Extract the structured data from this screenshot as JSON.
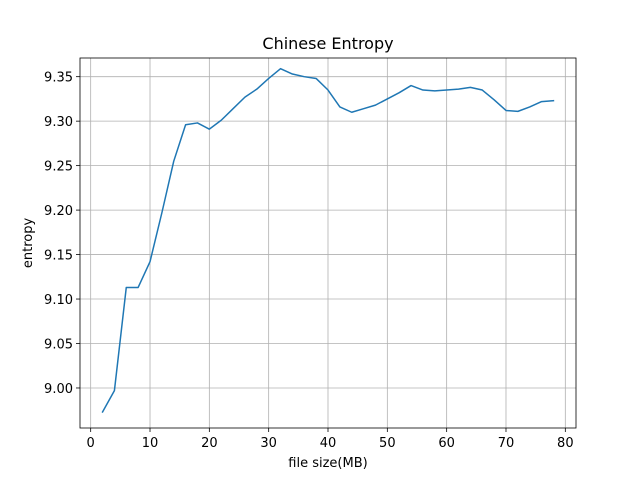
{
  "chart_data": {
    "type": "line",
    "title": "Chinese Entropy",
    "xlabel": "file size(MB)",
    "ylabel": "entropy",
    "xlim": [
      -1.8,
      81.8
    ],
    "ylim": [
      8.955,
      9.371
    ],
    "xticks": [
      0,
      10,
      20,
      30,
      40,
      50,
      60,
      70,
      80
    ],
    "yticks": [
      9.0,
      9.05,
      9.1,
      9.15,
      9.2,
      9.25,
      9.3,
      9.35
    ],
    "xtick_labels": [
      "0",
      "10",
      "20",
      "30",
      "40",
      "50",
      "60",
      "70",
      "80"
    ],
    "ytick_labels": [
      "9.00",
      "9.05",
      "9.10",
      "9.15",
      "9.20",
      "9.25",
      "9.30",
      "9.35"
    ],
    "grid": true,
    "series": [
      {
        "color": "#1f77b4",
        "x": [
          2,
          4,
          6,
          8,
          10,
          12,
          14,
          16,
          18,
          20,
          22,
          24,
          26,
          28,
          30,
          32,
          34,
          36,
          38,
          40,
          42,
          44,
          46,
          48,
          50,
          52,
          54,
          56,
          58,
          60,
          62,
          64,
          66,
          68,
          70,
          72,
          74,
          76,
          78
        ],
        "y": [
          8.973,
          8.997,
          9.113,
          9.113,
          9.142,
          9.197,
          9.255,
          9.296,
          9.298,
          9.291,
          9.301,
          9.314,
          9.327,
          9.336,
          9.348,
          9.359,
          9.353,
          9.35,
          9.348,
          9.335,
          9.316,
          9.31,
          9.314,
          9.318,
          9.325,
          9.332,
          9.34,
          9.335,
          9.334,
          9.335,
          9.336,
          9.338,
          9.335,
          9.324,
          9.312,
          9.311,
          9.316,
          9.322,
          9.323
        ]
      }
    ]
  }
}
